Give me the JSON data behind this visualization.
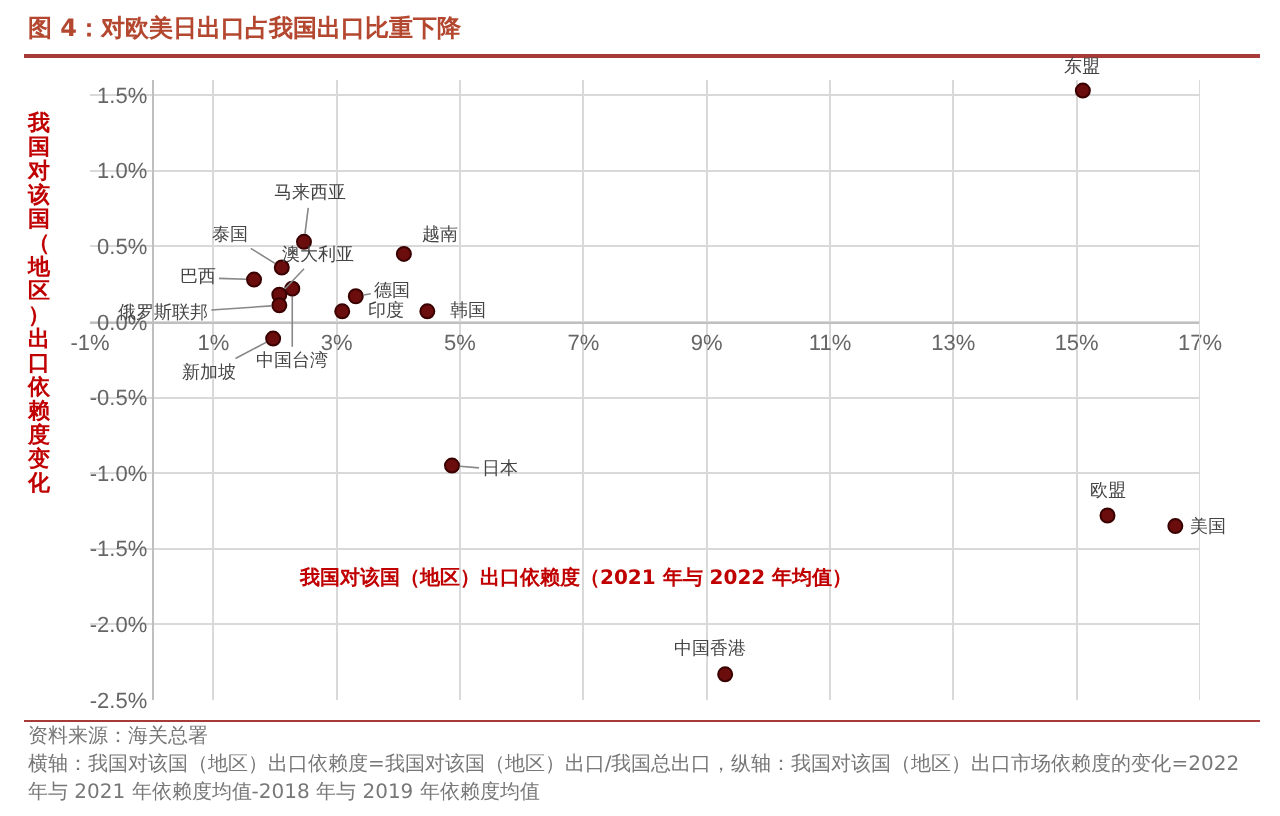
{
  "chart_data": {
    "type": "scatter",
    "title": "图 4：对欧美日出口占我国出口比重下降",
    "xlabel": "我国对该国（地区）出口依赖度（2021 年与 2022 年均值）",
    "ylabel": "我国对该国（地区）出口依赖度变化",
    "x": [
      15.1,
      2.47,
      4.09,
      2.11,
      1.66,
      2.07,
      2.28,
      2.07,
      3.31,
      3.09,
      4.47,
      1.97,
      4.87,
      15.5,
      16.6,
      9.3
    ],
    "series": [
      {
        "color": "#6b0d0d",
        "values": [
          1.53,
          0.53,
          0.45,
          0.36,
          0.28,
          0.18,
          0.22,
          0.11,
          0.17,
          0.07,
          0.07,
          -0.11,
          -0.95,
          -1.28,
          -1.35,
          -2.33
        ]
      }
    ],
    "marker": "circle",
    "grid": true,
    "xlim": [
      -1,
      17
    ],
    "ylim": [
      -2.5,
      1.6
    ],
    "xticks": [
      {
        "value": -1,
        "label": "-1%"
      },
      {
        "value": 1,
        "label": "1%"
      },
      {
        "value": 3,
        "label": "3%"
      },
      {
        "value": 5,
        "label": "5%"
      },
      {
        "value": 7,
        "label": "7%"
      },
      {
        "value": 9,
        "label": "9%"
      },
      {
        "value": 11,
        "label": "11%"
      },
      {
        "value": 13,
        "label": "13%"
      },
      {
        "value": 15,
        "label": "15%"
      },
      {
        "value": 17,
        "label": "17%"
      }
    ],
    "yticks": [
      {
        "value": -2.5,
        "label": "-2.5%"
      },
      {
        "value": -2,
        "label": "-2.0%"
      },
      {
        "value": -1.5,
        "label": "-1.5%"
      },
      {
        "value": -1,
        "label": "-1.0%"
      },
      {
        "value": -0.5,
        "label": "-0.5%"
      },
      {
        "value": 0,
        "label": "0.0%"
      },
      {
        "value": 0.5,
        "label": "0.5%"
      },
      {
        "value": 1,
        "label": "1.0%"
      },
      {
        "value": 1.5,
        "label": "1.5%"
      }
    ],
    "annotations": [
      {
        "text": "东盟",
        "x": 15.1,
        "y": 1.53
      },
      {
        "text": "马来西亚",
        "x": 2.47,
        "y": 0.53
      },
      {
        "text": "越南",
        "x": 4.09,
        "y": 0.45
      },
      {
        "text": "泰国",
        "x": 2.11,
        "y": 0.36
      },
      {
        "text": "巴西",
        "x": 1.66,
        "y": 0.28
      },
      {
        "text": "澳大利亚",
        "x": 2.07,
        "y": 0.18
      },
      {
        "text": "中国台湾",
        "x": 2.28,
        "y": 0.22
      },
      {
        "text": "俄罗斯联邦",
        "x": 2.07,
        "y": 0.11
      },
      {
        "text": "德国",
        "x": 3.31,
        "y": 0.17
      },
      {
        "text": "印度",
        "x": 3.09,
        "y": 0.07
      },
      {
        "text": "韩国",
        "x": 4.47,
        "y": 0.07
      },
      {
        "text": "新加坡",
        "x": 1.97,
        "y": -0.11
      },
      {
        "text": "日本",
        "x": 4.87,
        "y": -0.95
      },
      {
        "text": "欧盟",
        "x": 15.5,
        "y": -1.28
      },
      {
        "text": "美国",
        "x": 16.6,
        "y": -1.35
      },
      {
        "text": "中国香港",
        "x": 9.3,
        "y": -2.33
      },
      "资料来源：海关总署",
      "横轴：我国对该国（地区）出口依赖度=我国对该国（地区）出口/我国总出口，纵轴：我国对该国（地区）出口市场依赖度的变化=2022 年与 2021 年依赖度均值-2018 年与 2019 年依赖度均值"
    ]
  }
}
